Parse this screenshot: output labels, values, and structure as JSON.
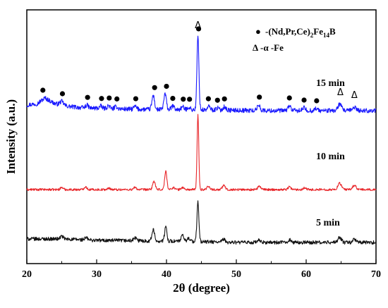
{
  "chart_data": {
    "type": "line",
    "xlabel_prefix": "2",
    "xlabel_theta": "θ",
    "xlabel_suffix": " (degree)",
    "ylabel": "Intensity (a.u.)",
    "xlim": [
      20,
      70
    ],
    "xticks": [
      "20",
      "30",
      "40",
      "50",
      "60",
      "70"
    ],
    "grid": false,
    "legend": {
      "position": "top-right",
      "phase1": {
        "marker": "●",
        "prefix": "-(Nd,Pr,Ce)",
        "sub1": "2",
        "mid": "Fe",
        "sub2": "14",
        "suffix": "B"
      },
      "phase2": {
        "marker": "Δ",
        "text": "-α -Fe"
      }
    },
    "series": [
      {
        "name": "15 min",
        "color": "#1a1aff",
        "baseline": 157,
        "noise": 3.2,
        "background": [
          [
            20,
            8
          ],
          [
            21.5,
            10
          ],
          [
            22.6,
            18
          ],
          [
            24,
            10
          ],
          [
            26,
            6
          ],
          [
            28,
            4
          ],
          [
            35,
            2
          ],
          [
            45,
            1
          ],
          [
            55,
            0
          ],
          [
            70,
            0
          ]
        ],
        "peaks": [
          [
            25.0,
            5,
            0.25
          ],
          [
            28.6,
            4,
            0.2
          ],
          [
            30.6,
            3,
            0.2
          ],
          [
            31.7,
            4,
            0.2
          ],
          [
            32.8,
            3,
            0.2
          ],
          [
            35.5,
            4,
            0.2
          ],
          [
            38.1,
            20,
            0.18
          ],
          [
            39.8,
            22,
            0.18
          ],
          [
            40.9,
            5,
            0.2
          ],
          [
            42.3,
            4,
            0.2
          ],
          [
            43.2,
            4,
            0.2
          ],
          [
            44.5,
            104,
            0.14
          ],
          [
            46.1,
            5,
            0.2
          ],
          [
            47.3,
            3,
            0.2
          ],
          [
            48.3,
            5,
            0.2
          ],
          [
            53.2,
            8,
            0.2
          ],
          [
            57.6,
            7,
            0.2
          ],
          [
            59.7,
            4,
            0.2
          ],
          [
            61.4,
            3,
            0.2
          ],
          [
            64.8,
            9,
            0.25
          ],
          [
            66.9,
            5,
            0.25
          ]
        ]
      },
      {
        "name": "10 min",
        "color": "#e8262a",
        "baseline": 269,
        "noise": 1.6,
        "background": [
          [
            20,
            0
          ],
          [
            70,
            0
          ]
        ],
        "peaks": [
          [
            25.0,
            3,
            0.2
          ],
          [
            28.4,
            4,
            0.2
          ],
          [
            31.8,
            2,
            0.2
          ],
          [
            35.5,
            3,
            0.2
          ],
          [
            38.2,
            12,
            0.18
          ],
          [
            39.9,
            26,
            0.16
          ],
          [
            41.0,
            3,
            0.2
          ],
          [
            42.3,
            3,
            0.2
          ],
          [
            44.5,
            106,
            0.12
          ],
          [
            46.0,
            5,
            0.2
          ],
          [
            48.2,
            6,
            0.2
          ],
          [
            53.3,
            5,
            0.2
          ],
          [
            57.6,
            4,
            0.2
          ],
          [
            59.8,
            3,
            0.2
          ],
          [
            64.8,
            9,
            0.25
          ],
          [
            66.9,
            6,
            0.25
          ]
        ]
      },
      {
        "name": "5 min",
        "color": "#111111",
        "baseline": 344,
        "noise": 2.6,
        "background": [
          [
            20,
            5
          ],
          [
            25,
            5
          ],
          [
            30,
            3
          ],
          [
            40,
            2
          ],
          [
            50,
            0
          ],
          [
            70,
            0
          ]
        ],
        "peaks": [
          [
            25.0,
            4,
            0.2
          ],
          [
            28.5,
            3,
            0.2
          ],
          [
            35.5,
            4,
            0.2
          ],
          [
            38.1,
            16,
            0.18
          ],
          [
            39.9,
            20,
            0.16
          ],
          [
            42.3,
            8,
            0.2
          ],
          [
            43.2,
            5,
            0.2
          ],
          [
            44.5,
            56,
            0.14
          ],
          [
            48.2,
            4,
            0.2
          ],
          [
            53.2,
            3,
            0.2
          ],
          [
            57.6,
            4,
            0.2
          ],
          [
            64.8,
            7,
            0.25
          ],
          [
            66.9,
            4,
            0.25
          ]
        ]
      }
    ],
    "phase_markers": {
      "dots": [
        22.3,
        25.1,
        28.7,
        30.7,
        31.8,
        32.9,
        35.6,
        38.3,
        40.0,
        40.9,
        42.4,
        43.3,
        44.6,
        46.0,
        47.3,
        48.3,
        53.3,
        57.6,
        59.7,
        61.5
      ],
      "triangles": [
        44.5,
        64.9,
        66.9
      ],
      "triangle_symbol": "Δ"
    }
  }
}
